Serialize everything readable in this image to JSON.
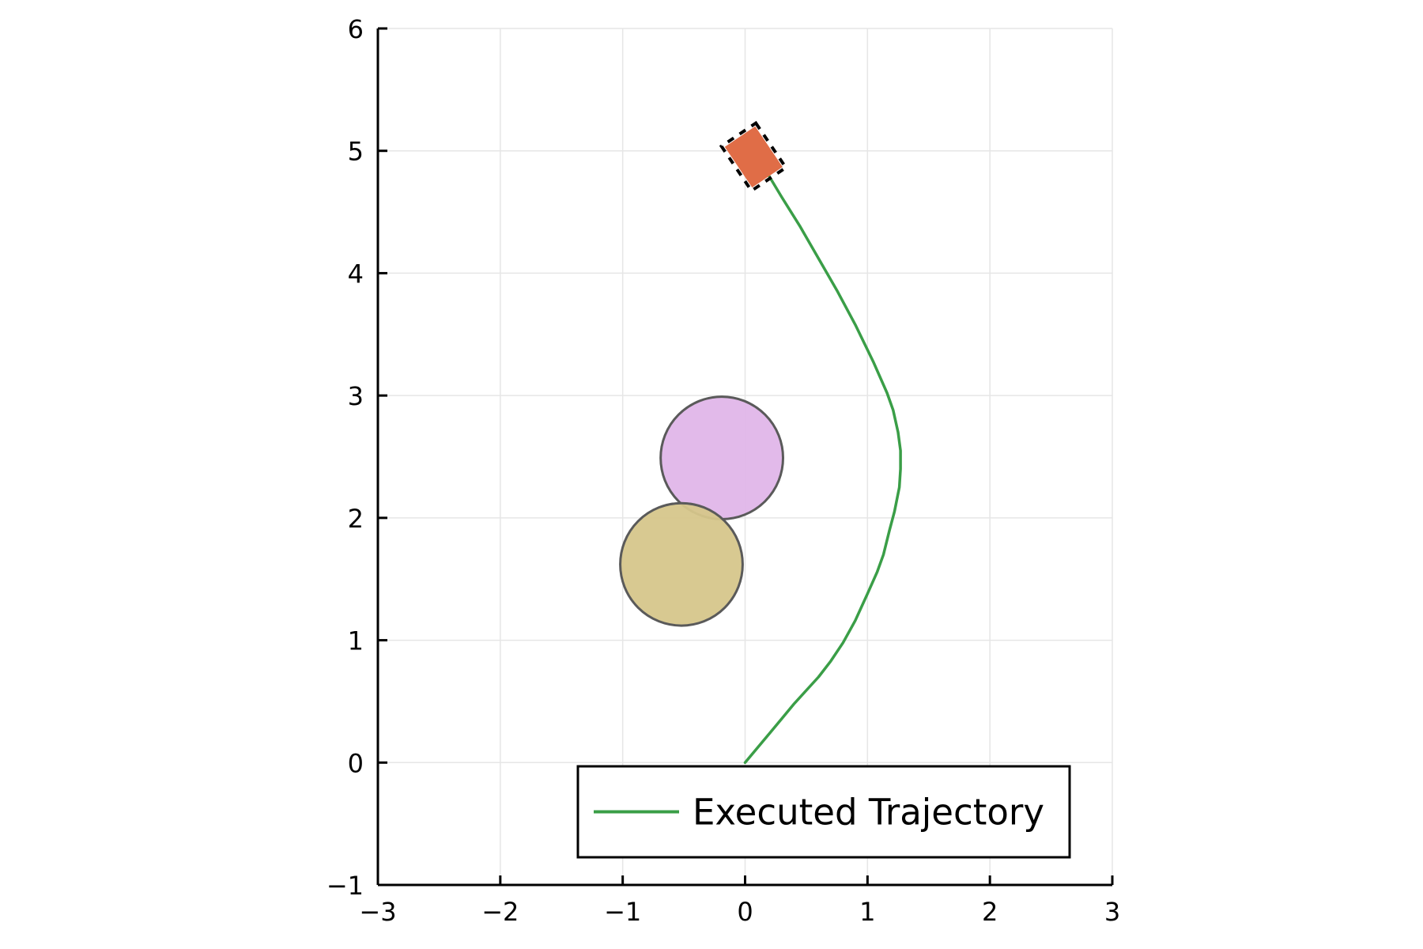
{
  "chart_data": {
    "type": "line",
    "title": "",
    "xlabel": "",
    "ylabel": "",
    "xlim": [
      -3,
      3
    ],
    "ylim": [
      -1,
      6
    ],
    "x_ticks": [
      -3,
      -2,
      -1,
      0,
      1,
      2,
      3
    ],
    "y_ticks": [
      -1,
      0,
      1,
      2,
      3,
      4,
      5,
      6
    ],
    "x_tick_labels": [
      "−3",
      "−2",
      "−1",
      "0",
      "1",
      "2",
      "3"
    ],
    "y_tick_labels": [
      "−1",
      "0",
      "1",
      "2",
      "3",
      "4",
      "5",
      "6"
    ],
    "grid": true,
    "aspect": "equal",
    "legend": {
      "position": "bottom-right",
      "entries": [
        {
          "label": "Executed Trajectory",
          "color": "#3a9e47"
        }
      ]
    },
    "series": [
      {
        "name": "Executed Trajectory",
        "color": "#3a9e47",
        "points": [
          [
            0.0,
            0.0
          ],
          [
            0.1,
            0.12
          ],
          [
            0.2,
            0.24
          ],
          [
            0.3,
            0.36
          ],
          [
            0.4,
            0.48
          ],
          [
            0.5,
            0.59
          ],
          [
            0.6,
            0.7
          ],
          [
            0.7,
            0.83
          ],
          [
            0.8,
            0.98
          ],
          [
            0.9,
            1.16
          ],
          [
            1.0,
            1.38
          ],
          [
            1.08,
            1.56
          ],
          [
            1.13,
            1.7
          ],
          [
            1.18,
            1.9
          ],
          [
            1.22,
            2.05
          ],
          [
            1.26,
            2.25
          ],
          [
            1.27,
            2.4
          ],
          [
            1.27,
            2.55
          ],
          [
            1.25,
            2.7
          ],
          [
            1.21,
            2.88
          ],
          [
            1.16,
            3.02
          ],
          [
            1.05,
            3.27
          ],
          [
            0.9,
            3.58
          ],
          [
            0.75,
            3.86
          ],
          [
            0.6,
            4.12
          ],
          [
            0.45,
            4.38
          ],
          [
            0.3,
            4.62
          ],
          [
            0.18,
            4.82
          ],
          [
            0.12,
            4.9
          ],
          [
            0.08,
            4.93
          ]
        ]
      }
    ],
    "obstacles": [
      {
        "name": "obstacle-1",
        "cx": -0.19,
        "cy": 2.49,
        "r": 0.5,
        "color": "#e0b6e9"
      },
      {
        "name": "obstacle-2",
        "cx": -0.52,
        "cy": 1.62,
        "r": 0.5,
        "color": "#d6c68b"
      }
    ],
    "robot": {
      "cx": 0.07,
      "cy": 4.95,
      "length": 0.4,
      "width": 0.3,
      "heading_deg": -56,
      "color": "#e06d47"
    }
  }
}
